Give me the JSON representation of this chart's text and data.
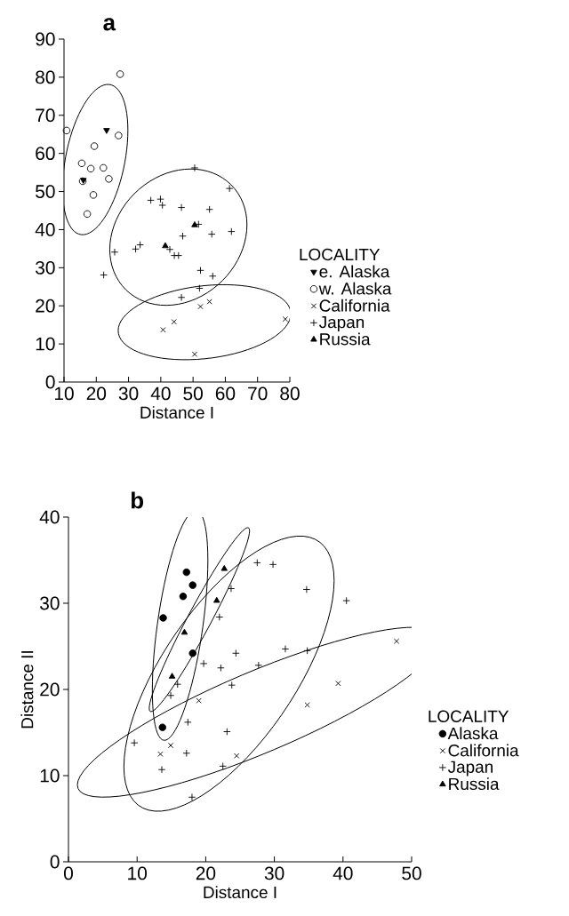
{
  "chart_data": [
    {
      "type": "scatter",
      "title": "a",
      "xlabel": "Distance I",
      "xlim": [
        10,
        80
      ],
      "ylim": [
        0,
        90
      ],
      "xticks": [
        10,
        20,
        30,
        40,
        50,
        60,
        70,
        80
      ],
      "yticks": [
        0,
        10,
        20,
        30,
        40,
        50,
        60,
        70,
        80,
        90
      ],
      "legend": "right",
      "legend_title": "LOCALITY",
      "series": [
        {
          "name": "e. Alaska",
          "color": "#000000",
          "marker": "triangle-down",
          "x": [
            23.2,
            16.0
          ],
          "values": [
            66.1,
            53.0
          ]
        },
        {
          "name": "w. Alaska",
          "color": "#000000",
          "marker": "circle-open",
          "x": [
            10.8,
            27.4,
            26.9,
            19.4,
            15.5,
            18.3,
            22.2,
            23.9,
            15.8,
            19.1,
            17.2
          ],
          "values": [
            66.0,
            80.8,
            64.7,
            61.9,
            57.4,
            56.0,
            56.2,
            53.3,
            52.7,
            49.1,
            44.1
          ]
        },
        {
          "name": "California",
          "color": "#000000",
          "marker": "cross",
          "x": [
            40.7,
            44.1,
            50.5,
            52.3,
            55.1,
            78.6
          ],
          "values": [
            13.7,
            15.8,
            7.3,
            19.8,
            21.1,
            16.5
          ]
        },
        {
          "name": "Japan",
          "color": "#000000",
          "marker": "plus",
          "x": [
            25.7,
            22.3,
            32.2,
            33.6,
            36.9,
            39.9,
            40.5,
            42.8,
            44.2,
            45.5,
            46.4,
            46.8,
            46.4,
            50.5,
            51.7,
            52.3,
            52.0,
            55.1,
            55.8,
            56.1,
            61.3,
            61.9
          ],
          "values": [
            34.1,
            28.1,
            34.9,
            36.0,
            47.7,
            48.0,
            46.4,
            34.8,
            33.2,
            33.2,
            45.8,
            38.3,
            22.2,
            56.2,
            41.4,
            29.3,
            24.6,
            45.3,
            38.8,
            27.8,
            50.8,
            39.5
          ]
        },
        {
          "name": "Russia",
          "color": "#000000",
          "marker": "triangle",
          "x": [
            41.4,
            50.5
          ],
          "values": [
            35.7,
            41.2
          ]
        }
      ]
    },
    {
      "type": "scatter",
      "title": "b",
      "xlabel": "Distance I",
      "ylabel": "Distance II",
      "xlim": [
        0,
        50
      ],
      "ylim": [
        0,
        40
      ],
      "xticks": [
        0,
        10,
        20,
        30,
        40,
        50
      ],
      "yticks": [
        0,
        10,
        20,
        30,
        40
      ],
      "legend": "right",
      "legend_title": "LOCALITY",
      "series": [
        {
          "name": "Alaska",
          "color": "#000000",
          "marker": "circle",
          "x": [
            17.2,
            18.1,
            16.7,
            13.8,
            18.1,
            13.7
          ],
          "values": [
            33.6,
            32.1,
            30.8,
            28.3,
            24.2,
            15.6
          ]
        },
        {
          "name": "California",
          "color": "#000000",
          "marker": "cross",
          "x": [
            13.4,
            14.9,
            19.0,
            24.5,
            34.8,
            39.3,
            47.8
          ],
          "values": [
            12.5,
            13.5,
            18.7,
            12.3,
            18.2,
            20.7,
            25.6
          ]
        },
        {
          "name": "Japan",
          "color": "#000000",
          "marker": "plus",
          "x": [
            27.5,
            29.8,
            23.7,
            34.7,
            40.5,
            22.0,
            24.4,
            31.6,
            34.8,
            19.7,
            22.2,
            27.7,
            15.9,
            23.8,
            14.9,
            17.4,
            23.1,
            9.6,
            17.2,
            13.6,
            22.5,
            18.0
          ],
          "values": [
            34.7,
            34.5,
            31.7,
            31.6,
            30.3,
            28.4,
            24.2,
            24.7,
            24.5,
            23.0,
            22.5,
            22.8,
            20.6,
            20.5,
            19.3,
            16.2,
            15.1,
            13.8,
            12.6,
            10.7,
            11.1,
            7.5
          ]
        },
        {
          "name": "Russia",
          "color": "#000000",
          "marker": "triangle",
          "x": [
            22.7,
            21.6,
            16.9,
            15.1
          ],
          "values": [
            34.0,
            30.3,
            26.6,
            21.5
          ]
        }
      ]
    }
  ]
}
